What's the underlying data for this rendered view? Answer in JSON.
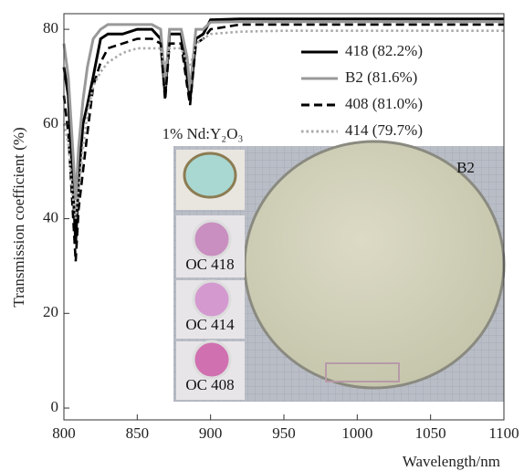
{
  "chart_data": {
    "type": "line",
    "x_label": "Wavelength/nm",
    "y_label": "Transmission coefficient (%)",
    "x": [
      800,
      803,
      806,
      808,
      810,
      813,
      816,
      820,
      825,
      830,
      840,
      850,
      860,
      866,
      869,
      872,
      880,
      884,
      886,
      890,
      895,
      900,
      920,
      950,
      1000,
      1050,
      1100
    ],
    "series": [
      {
        "name": "418 (82.2%)",
        "color": "#000000",
        "style": "solid",
        "values": [
          72,
          66,
          48,
          35,
          48,
          60,
          64,
          70,
          78,
          79,
          79,
          80,
          80,
          78,
          66,
          79,
          79,
          70,
          65,
          78,
          79,
          82,
          82.2,
          82.2,
          82.2,
          82.2,
          82.2
        ]
      },
      {
        "name": "B2 (81.6%)",
        "color": "#999999",
        "style": "solid",
        "values": [
          77,
          70,
          55,
          44,
          55,
          65,
          72,
          78,
          80,
          81,
          81,
          81,
          81,
          80,
          68,
          80,
          80,
          74,
          67,
          80,
          80,
          81.5,
          81.6,
          81.6,
          81.6,
          81.6,
          81.6
        ]
      },
      {
        "name": "408 (81.0%)",
        "color": "#000000",
        "style": "dashed",
        "values": [
          66,
          58,
          42,
          31,
          42,
          50,
          58,
          68,
          73,
          76,
          77,
          78,
          78,
          77,
          65,
          77,
          77,
          68,
          64,
          77,
          78,
          80,
          81,
          81,
          81,
          81,
          81
        ]
      },
      {
        "name": "414 (79.7%)",
        "color": "#aaaaaa",
        "style": "dotted",
        "values": [
          60,
          56,
          45,
          40,
          46,
          55,
          62,
          68,
          71,
          73,
          75,
          76,
          76,
          76,
          72,
          76,
          76,
          73,
          72,
          77,
          78,
          79,
          79.5,
          79.7,
          79.7,
          79.7,
          79.7
        ]
      }
    ],
    "xlim": [
      800,
      1100
    ],
    "xticks": [
      800,
      850,
      900,
      950,
      1000,
      1050,
      1100
    ],
    "ylim": [
      -2.5,
      83.3
    ],
    "yticks": [
      0,
      20,
      40,
      60,
      80
    ],
    "grid": false,
    "legend": "upper right",
    "inset": {
      "title": "1% Nd:Y₂O₃",
      "labels": [
        "OC 418",
        "OC 414",
        "OC 408"
      ],
      "main_label": "B2"
    }
  }
}
